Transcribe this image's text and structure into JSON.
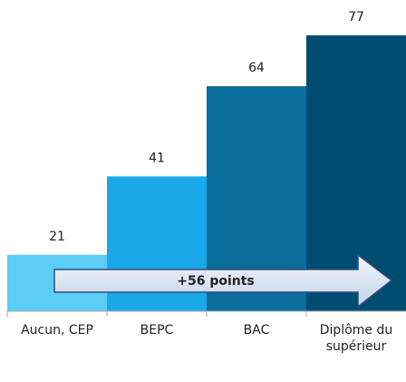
{
  "chart_data": {
    "type": "bar",
    "categories": [
      "Aucun, CEP",
      "BEPC",
      "BAC",
      "Diplôme du supérieur"
    ],
    "values": [
      21,
      41,
      64,
      77
    ],
    "colors": [
      "#5ccdf5",
      "#1aa8e9",
      "#0a6d9b",
      "#004d72"
    ],
    "ylim": [
      6.6,
      86
    ],
    "annotation": "+56 points"
  }
}
